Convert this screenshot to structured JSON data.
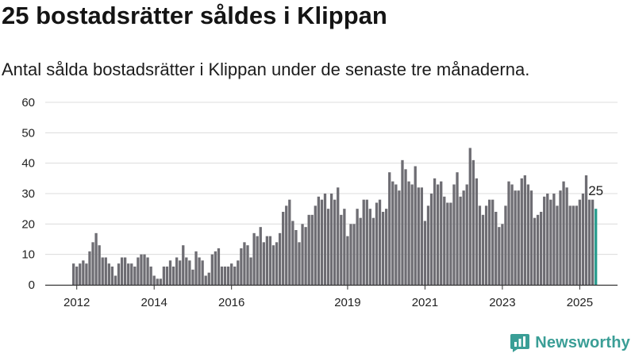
{
  "title": "25 bostadsrätter såldes i Klippan",
  "subtitle": "Antal sålda bostadsrätter i Klippan under de senaste tre månaderna.",
  "brand": {
    "name": "Newsworthy",
    "icon": "newsworthy-logo-icon",
    "color": "#3a9e96"
  },
  "colors": {
    "bar": "#6e6d73",
    "highlight": "#2a9d8f",
    "grid": "#dcdcdc",
    "axis": "#333333"
  },
  "chart_data": {
    "type": "bar",
    "title": "25 bostadsrätter såldes i Klippan",
    "subtitle": "Antal sålda bostadsrätter i Klippan under de senaste tre månaderna.",
    "xlabel": "",
    "ylabel": "",
    "ylim": [
      0,
      60
    ],
    "y_ticks": [
      0,
      10,
      20,
      30,
      40,
      50,
      60
    ],
    "x_tick_labels": [
      "2012",
      "2014",
      "2016",
      "2019",
      "2021",
      "2023",
      "2025"
    ],
    "grid": "horizontal",
    "last_value_label": "25",
    "series": [
      {
        "values": [
          7,
          6,
          7,
          8,
          7,
          11,
          14,
          17,
          13,
          9,
          9,
          7,
          6,
          3,
          7,
          9,
          9,
          7,
          7,
          6,
          9,
          10,
          10,
          9,
          6,
          3,
          2,
          2,
          6,
          6,
          8,
          6,
          9,
          8,
          13,
          9,
          8,
          5,
          11,
          9,
          8,
          3,
          4,
          10,
          11,
          12,
          6,
          6,
          6,
          7,
          6,
          8,
          12,
          14,
          13,
          9,
          17,
          16,
          19,
          14,
          16,
          16,
          13,
          14,
          17,
          24,
          26,
          28,
          21,
          18,
          14,
          20,
          19,
          23,
          23,
          26,
          29,
          28,
          30,
          25,
          30,
          28,
          32,
          23,
          25,
          16,
          20,
          20,
          25,
          22,
          28,
          28,
          25,
          22,
          27,
          28,
          24,
          25,
          37,
          34,
          33,
          31,
          41,
          38,
          34,
          33,
          39,
          32,
          32,
          21,
          26,
          30,
          35,
          33,
          34,
          29,
          27,
          27,
          33,
          37,
          29,
          31,
          33,
          45,
          41,
          35,
          26,
          23,
          26,
          28,
          28,
          24,
          19,
          20,
          26,
          34,
          33,
          31,
          31,
          35,
          36,
          33,
          31,
          22,
          23,
          24,
          29,
          30,
          28,
          30,
          26,
          31,
          34,
          32,
          26,
          26,
          26,
          28,
          30,
          36,
          28,
          28,
          25
        ]
      }
    ]
  }
}
